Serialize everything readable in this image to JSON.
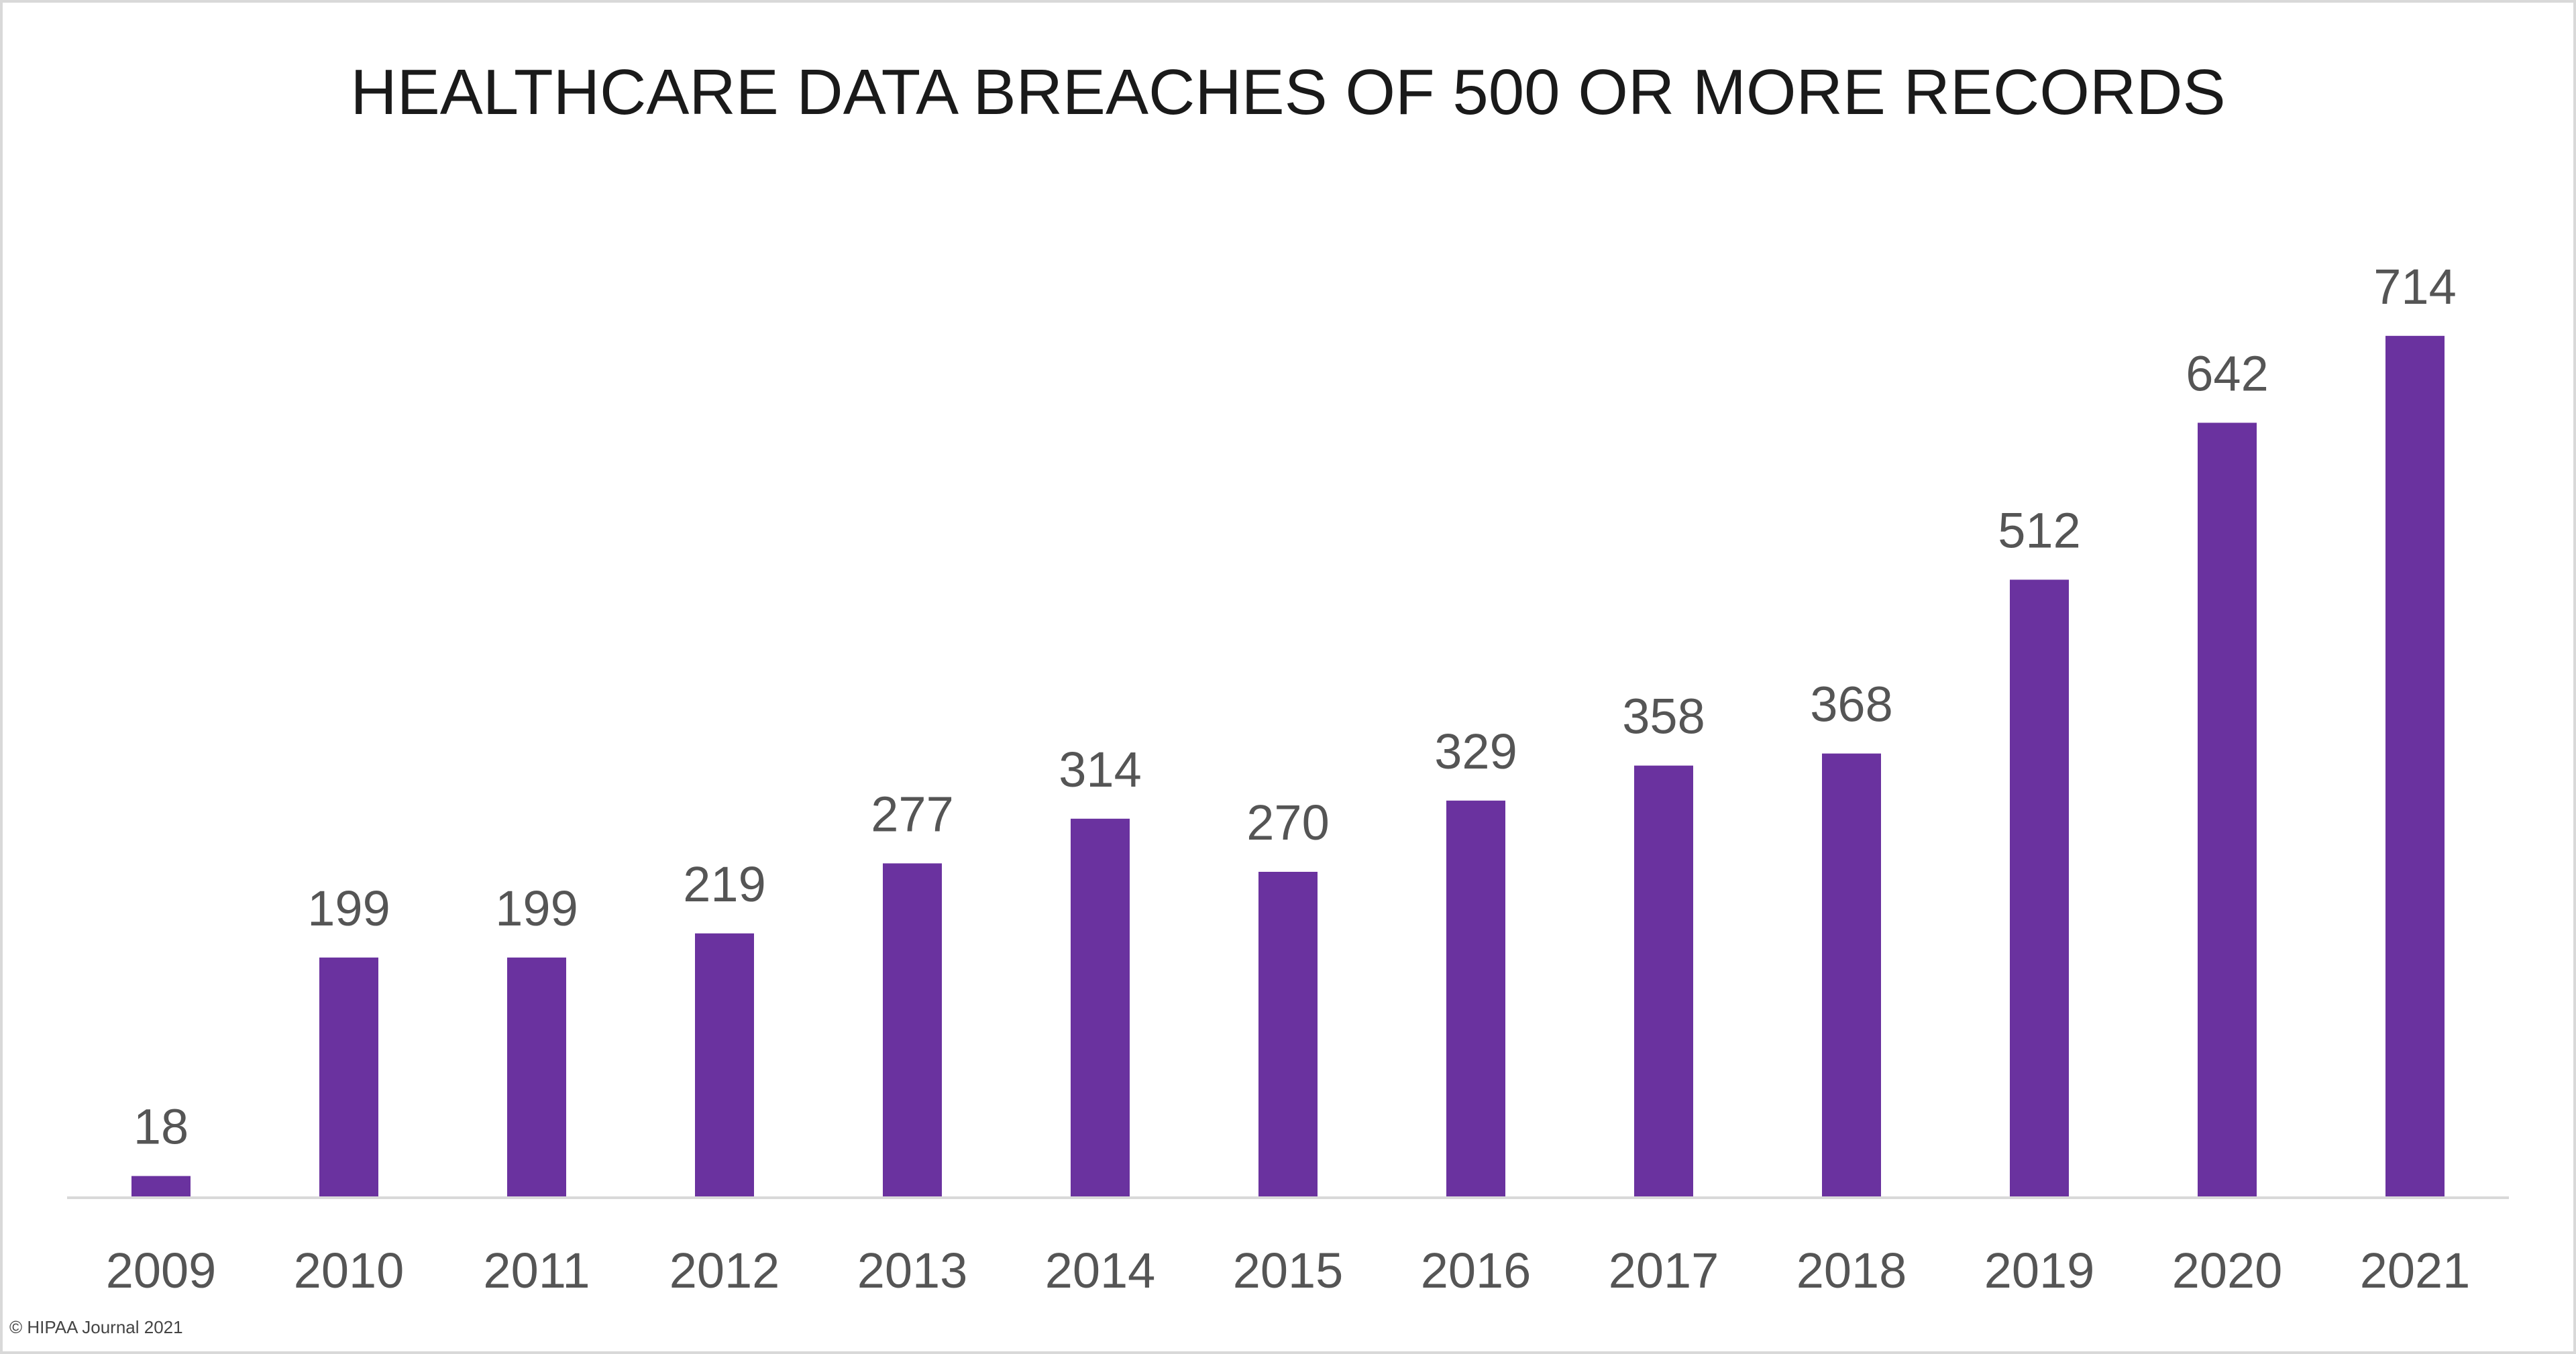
{
  "copyright": "© HIPAA Journal 2021",
  "chart_data": {
    "type": "bar",
    "title": "HEALTHCARE DATA BREACHES OF 500 OR MORE RECORDS",
    "xlabel": "",
    "ylabel": "",
    "categories": [
      "2009",
      "2010",
      "2011",
      "2012",
      "2013",
      "2014",
      "2015",
      "2016",
      "2017",
      "2018",
      "2019",
      "2020",
      "2021"
    ],
    "values": [
      18,
      199,
      199,
      219,
      277,
      314,
      270,
      329,
      358,
      368,
      512,
      642,
      714
    ],
    "ylim": [
      0,
      800
    ],
    "grid": false,
    "legend": "none",
    "bar_color": "#6a329f",
    "axis_color": "#d9d9d9",
    "data_labels": true
  }
}
